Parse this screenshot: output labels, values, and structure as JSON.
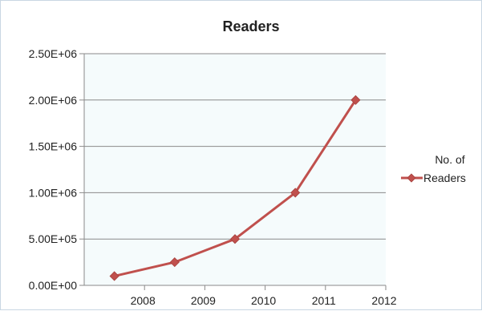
{
  "chart_data": {
    "type": "line",
    "title": "Readers",
    "xlabel": "",
    "ylabel": "",
    "x_tick_labels": [
      "2008",
      "2009",
      "2010",
      "2011",
      "2012"
    ],
    "y_tick_labels": [
      "0.00E+00",
      "5.00E+05",
      "1.00E+06",
      "1.50E+06",
      "2.00E+06",
      "2.50E+06"
    ],
    "ylim": [
      0,
      2500000
    ],
    "grid": "horizontal",
    "legend_position": "right",
    "plot_background": "#f5fbfc",
    "series": [
      {
        "name": "No. of Readers",
        "legend_lines": [
          "No. of",
          "Readers"
        ],
        "color": "#c0504d",
        "marker": "diamond",
        "values": [
          100000,
          250000,
          500000,
          1000000,
          2000000
        ]
      }
    ]
  }
}
